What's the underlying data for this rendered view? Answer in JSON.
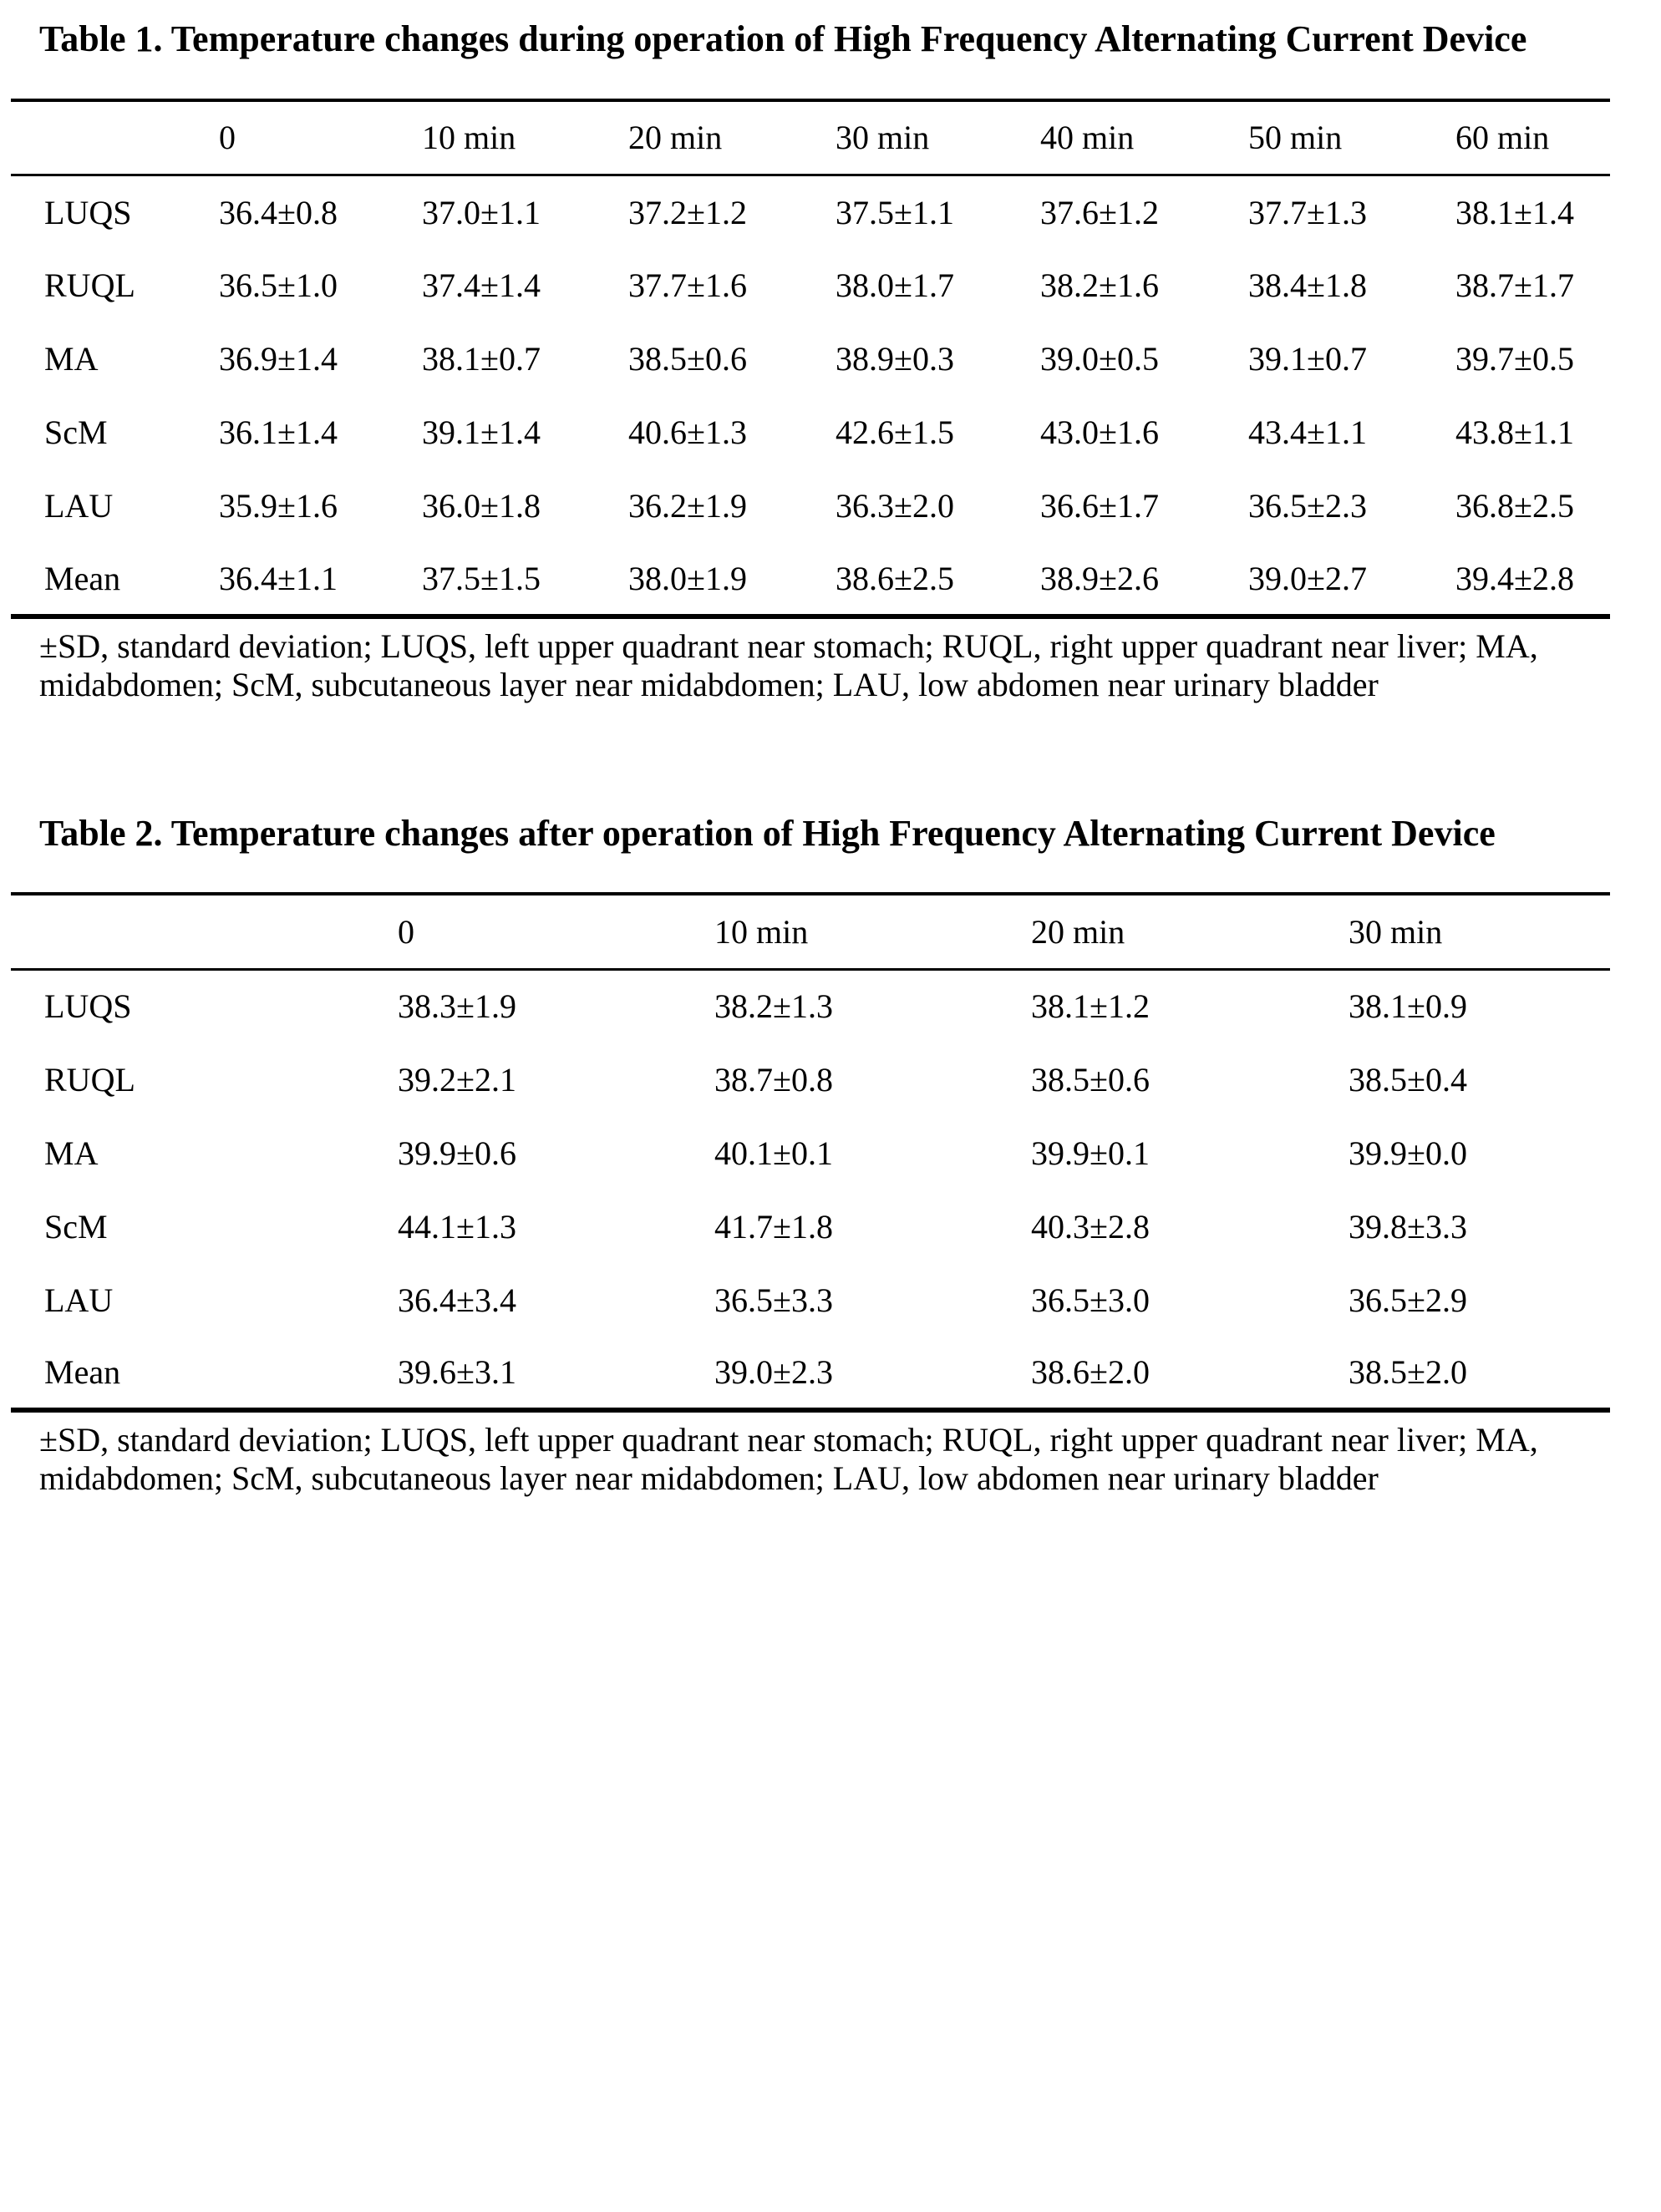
{
  "colors": {
    "background": "#ffffff",
    "text": "#000000",
    "rule": "#000000"
  },
  "tables": [
    {
      "title": "Table 1. Temperature changes during operation of High Frequency Alternating Current Device",
      "columns": [
        "",
        "0",
        "10 min",
        "20 min",
        "30 min",
        "40 min",
        "50 min",
        "60 min"
      ],
      "rows": [
        {
          "label": "LUQS",
          "values": [
            "36.4±0.8",
            "37.0±1.1",
            "37.2±1.2",
            "37.5±1.1",
            "37.6±1.2",
            "37.7±1.3",
            "38.1±1.4"
          ]
        },
        {
          "label": "RUQL",
          "values": [
            "36.5±1.0",
            "37.4±1.4",
            "37.7±1.6",
            "38.0±1.7",
            "38.2±1.6",
            "38.4±1.8",
            "38.7±1.7"
          ]
        },
        {
          "label": "MA",
          "values": [
            "36.9±1.4",
            "38.1±0.7",
            "38.5±0.6",
            "38.9±0.3",
            "39.0±0.5",
            "39.1±0.7",
            "39.7±0.5"
          ]
        },
        {
          "label": "ScM",
          "values": [
            "36.1±1.4",
            "39.1±1.4",
            "40.6±1.3",
            "42.6±1.5",
            "43.0±1.6",
            "43.4±1.1",
            "43.8±1.1"
          ]
        },
        {
          "label": "LAU",
          "values": [
            "35.9±1.6",
            "36.0±1.8",
            "36.2±1.9",
            "36.3±2.0",
            "36.6±1.7",
            "36.5±2.3",
            "36.8±2.5"
          ]
        },
        {
          "label": "Mean",
          "values": [
            "36.4±1.1",
            "37.5±1.5",
            "38.0±1.9",
            "38.6±2.5",
            "38.9±2.6",
            "39.0±2.7",
            "39.4±2.8"
          ]
        }
      ],
      "footnote": "±SD, standard deviation; LUQS, left upper quadrant near stomach; RUQL, right upper quadrant near liver; MA, midabdomen; ScM, subcutaneous layer near midabdomen; LAU, low abdomen near urinary bladder"
    },
    {
      "title": "Table 2. Temperature changes after operation of High Frequency Alternating Current Device",
      "columns": [
        "",
        "0",
        "10 min",
        "20 min",
        "30 min"
      ],
      "rows": [
        {
          "label": "LUQS",
          "values": [
            "38.3±1.9",
            "38.2±1.3",
            "38.1±1.2",
            "38.1±0.9"
          ]
        },
        {
          "label": "RUQL",
          "values": [
            "39.2±2.1",
            "38.7±0.8",
            "38.5±0.6",
            "38.5±0.4"
          ]
        },
        {
          "label": "MA",
          "values": [
            "39.9±0.6",
            "40.1±0.1",
            "39.9±0.1",
            "39.9±0.0"
          ]
        },
        {
          "label": "ScM",
          "values": [
            "44.1±1.3",
            "41.7±1.8",
            "40.3±2.8",
            "39.8±3.3"
          ]
        },
        {
          "label": "LAU",
          "values": [
            "36.4±3.4",
            "36.5±3.3",
            "36.5±3.0",
            "36.5±2.9"
          ]
        },
        {
          "label": "Mean",
          "values": [
            "39.6±3.1",
            "39.0±2.3",
            "38.6±2.0",
            "38.5±2.0"
          ]
        }
      ],
      "footnote": "±SD, standard deviation; LUQS, left upper quadrant near stomach; RUQL, right upper quadrant near liver; MA, midabdomen; ScM, subcutaneous layer near midabdomen; LAU, low abdomen near urinary bladder"
    }
  ]
}
